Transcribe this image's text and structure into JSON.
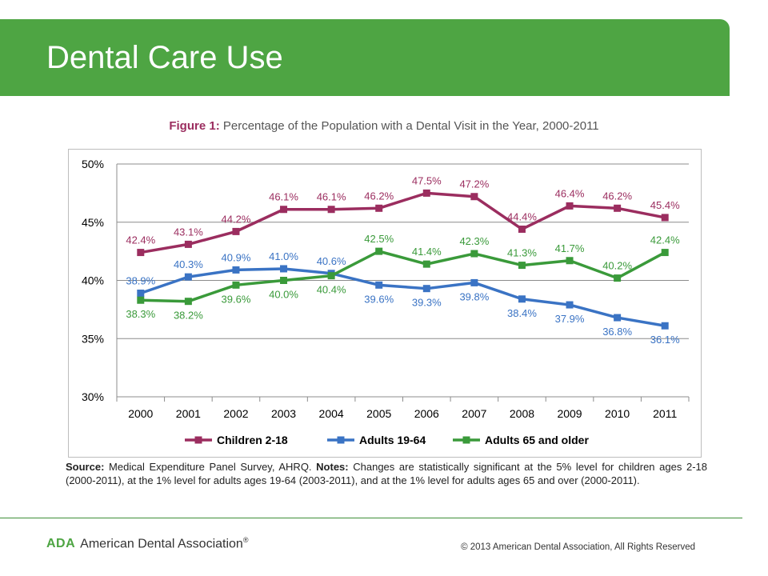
{
  "slide": {
    "title": "Dental Care Use"
  },
  "figure": {
    "label": "Figure 1:",
    "caption": " Percentage of the Population with a Dental Visit in the Year, 2000-2011"
  },
  "chart_data": {
    "type": "line",
    "title": "",
    "xlabel": "",
    "ylabel": "",
    "categories": [
      "2000",
      "2001",
      "2002",
      "2003",
      "2004",
      "2005",
      "2006",
      "2007",
      "2008",
      "2009",
      "2010",
      "2011"
    ],
    "ylim": [
      30,
      50
    ],
    "yticks": [
      30,
      35,
      40,
      45,
      50
    ],
    "ytick_labels": [
      "30%",
      "35%",
      "40%",
      "45%",
      "50%"
    ],
    "grid": true,
    "legend_position": "bottom",
    "series": [
      {
        "name": "Children 2-18",
        "color": "#9b2d5f",
        "values": [
          42.4,
          43.1,
          44.2,
          46.1,
          46.1,
          46.2,
          47.5,
          47.2,
          44.4,
          46.4,
          46.2,
          45.4
        ],
        "labels": [
          "42.4%",
          "43.1%",
          "44.2%",
          "46.1%",
          "46.1%",
          "46.2%",
          "47.5%",
          "47.2%",
          "44.4%",
          "46.4%",
          "46.2%",
          "45.4%"
        ]
      },
      {
        "name": "Adults 19-64",
        "color": "#3a73c4",
        "values": [
          38.9,
          40.3,
          40.9,
          41.0,
          40.6,
          39.6,
          39.3,
          39.8,
          38.4,
          37.9,
          36.8,
          36.1
        ],
        "labels": [
          "38.9%",
          "40.3%",
          "40.9%",
          "41.0%",
          "40.6%",
          "39.6%",
          "39.3%",
          "39.8%",
          "38.4%",
          "37.9%",
          "36.8%",
          "36.1%"
        ]
      },
      {
        "name": "Adults 65 and older",
        "color": "#3a9a3a",
        "values": [
          38.3,
          38.2,
          39.6,
          40.0,
          40.4,
          42.5,
          41.4,
          42.3,
          41.3,
          41.7,
          40.2,
          42.4
        ],
        "labels": [
          "38.3%",
          "38.2%",
          "39.6%",
          "40.0%",
          "40.4%",
          "42.5%",
          "41.4%",
          "42.3%",
          "41.3%",
          "41.7%",
          "40.2%",
          "42.4%"
        ]
      }
    ]
  },
  "note": {
    "source_label": "Source:",
    "source_text": " Medical Expenditure Panel Survey, AHRQ. ",
    "notes_label": "Notes:",
    "notes_text": " Changes are statistically significant at the 5% level for children ages 2-18 (2000-2011), at the 1% level for adults ages 19-64 (2003-2011), and at the 1% level for adults ages 65 and over (2000-2011)."
  },
  "footer": {
    "logo_abbrev": "ADA",
    "logo_name": "American Dental Association",
    "logo_mark": "®",
    "copyright": "© 2013 American Dental Association, All Rights Reserved"
  }
}
